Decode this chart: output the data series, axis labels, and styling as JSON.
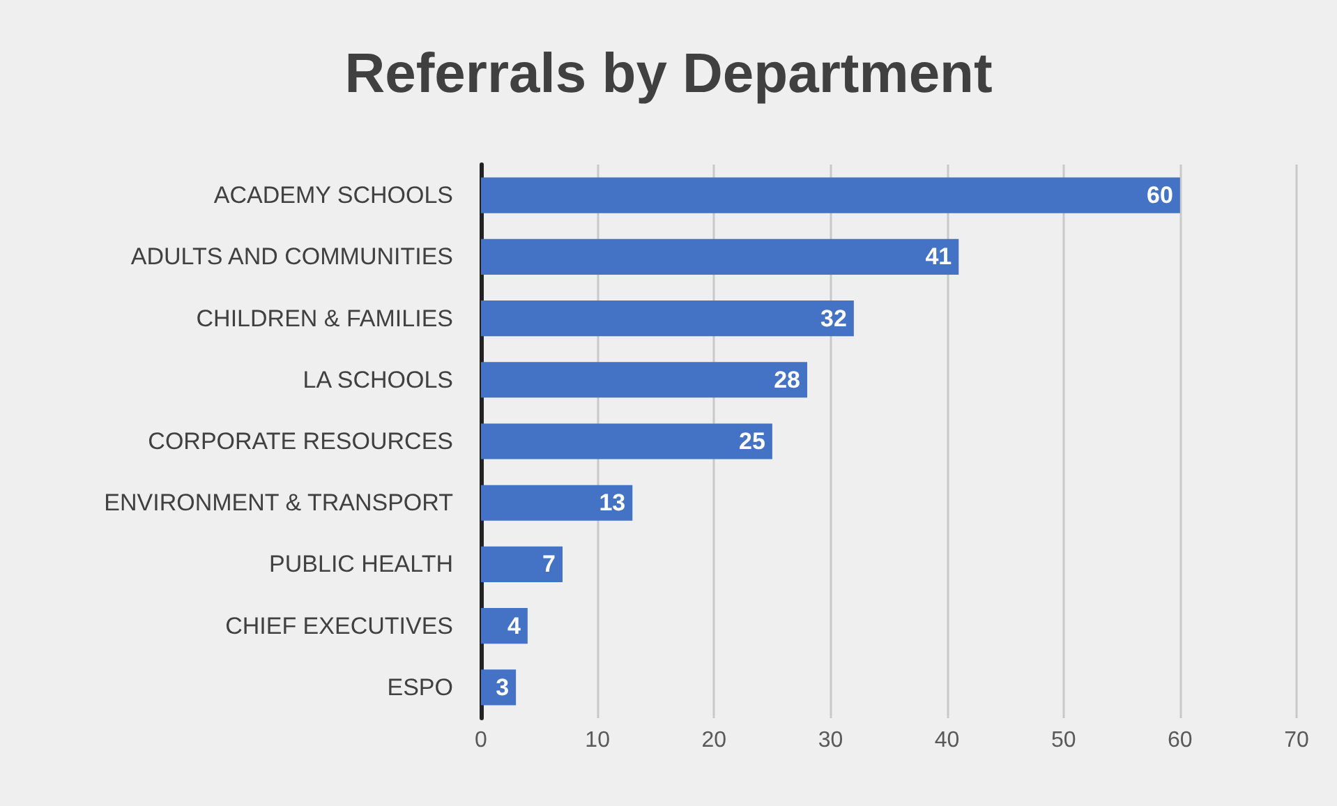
{
  "chart_data": {
    "type": "bar",
    "orientation": "horizontal",
    "title": "Referrals by Department",
    "categories": [
      "ACADEMY SCHOOLS",
      "ADULTS AND COMMUNITIES",
      "CHILDREN & FAMILIES",
      "LA SCHOOLS",
      "CORPORATE RESOURCES",
      "ENVIRONMENT & TRANSPORT",
      "PUBLIC HEALTH",
      "CHIEF EXECUTIVES",
      "ESPO"
    ],
    "values": [
      60,
      41,
      32,
      28,
      25,
      13,
      7,
      4,
      3
    ],
    "color": "#4472c4",
    "data_labels": true,
    "xlim": [
      0,
      70
    ],
    "xticks": [
      0,
      10,
      20,
      30,
      40,
      50,
      60,
      70
    ],
    "grid": "x"
  }
}
